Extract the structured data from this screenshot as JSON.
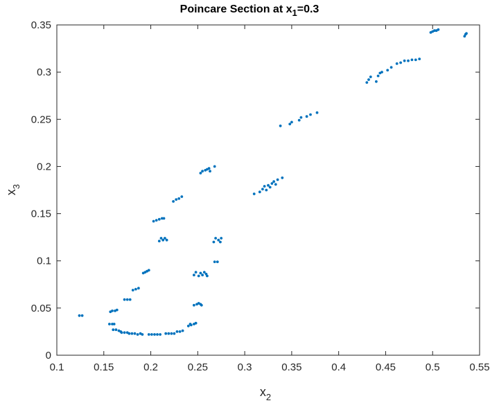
{
  "chart_data": {
    "type": "scatter",
    "title": {
      "prefix": "Poincare Section at x",
      "subscript": "1",
      "suffix": "=0.3"
    },
    "xlabel": {
      "base": "x",
      "subscript": "2"
    },
    "ylabel": {
      "base": "x",
      "subscript": "3"
    },
    "xlim": [
      0.1,
      0.55
    ],
    "ylim": [
      0,
      0.35
    ],
    "xticks": [
      0.1,
      0.15,
      0.2,
      0.25,
      0.3,
      0.35,
      0.4,
      0.45,
      0.5,
      0.55
    ],
    "yticks": [
      0,
      0.05,
      0.1,
      0.15,
      0.2,
      0.25,
      0.3,
      0.35
    ],
    "xtick_labels": [
      "0.1",
      "0.15",
      "0.2",
      "0.25",
      "0.3",
      "0.35",
      "0.4",
      "0.45",
      "0.5",
      "0.55"
    ],
    "ytick_labels": [
      "0",
      "0.05",
      "0.1",
      "0.15",
      "0.2",
      "0.25",
      "0.3",
      "0.35"
    ],
    "marker_color": "#0072BD",
    "points": [
      [
        0.124,
        0.042
      ],
      [
        0.127,
        0.042
      ],
      [
        0.156,
        0.033
      ],
      [
        0.159,
        0.033
      ],
      [
        0.161,
        0.033
      ],
      [
        0.157,
        0.046
      ],
      [
        0.159,
        0.047
      ],
      [
        0.162,
        0.047
      ],
      [
        0.164,
        0.048
      ],
      [
        0.16,
        0.027
      ],
      [
        0.163,
        0.027
      ],
      [
        0.166,
        0.026
      ],
      [
        0.168,
        0.025
      ],
      [
        0.169,
        0.024
      ],
      [
        0.172,
        0.024
      ],
      [
        0.175,
        0.024
      ],
      [
        0.177,
        0.023
      ],
      [
        0.18,
        0.023
      ],
      [
        0.183,
        0.023
      ],
      [
        0.186,
        0.022
      ],
      [
        0.189,
        0.023
      ],
      [
        0.191,
        0.022
      ],
      [
        0.198,
        0.022
      ],
      [
        0.201,
        0.022
      ],
      [
        0.204,
        0.022
      ],
      [
        0.207,
        0.022
      ],
      [
        0.21,
        0.022
      ],
      [
        0.216,
        0.023
      ],
      [
        0.219,
        0.023
      ],
      [
        0.222,
        0.023
      ],
      [
        0.225,
        0.023
      ],
      [
        0.228,
        0.025
      ],
      [
        0.231,
        0.025
      ],
      [
        0.234,
        0.026
      ],
      [
        0.24,
        0.031
      ],
      [
        0.243,
        0.032
      ],
      [
        0.246,
        0.033
      ],
      [
        0.248,
        0.034
      ],
      [
        0.242,
        0.033
      ],
      [
        0.246,
        0.053
      ],
      [
        0.249,
        0.054
      ],
      [
        0.251,
        0.055
      ],
      [
        0.253,
        0.054
      ],
      [
        0.254,
        0.053
      ],
      [
        0.246,
        0.085
      ],
      [
        0.248,
        0.088
      ],
      [
        0.251,
        0.084
      ],
      [
        0.253,
        0.087
      ],
      [
        0.255,
        0.085
      ],
      [
        0.257,
        0.088
      ],
      [
        0.259,
        0.086
      ],
      [
        0.26,
        0.084
      ],
      [
        0.268,
        0.099
      ],
      [
        0.271,
        0.099
      ],
      [
        0.267,
        0.12
      ],
      [
        0.269,
        0.124
      ],
      [
        0.272,
        0.122
      ],
      [
        0.274,
        0.12
      ],
      [
        0.275,
        0.124
      ],
      [
        0.253,
        0.193
      ],
      [
        0.255,
        0.195
      ],
      [
        0.258,
        0.196
      ],
      [
        0.26,
        0.197
      ],
      [
        0.262,
        0.198
      ],
      [
        0.263,
        0.195
      ],
      [
        0.268,
        0.2
      ],
      [
        0.172,
        0.059
      ],
      [
        0.175,
        0.059
      ],
      [
        0.178,
        0.059
      ],
      [
        0.181,
        0.069
      ],
      [
        0.184,
        0.07
      ],
      [
        0.187,
        0.071
      ],
      [
        0.192,
        0.087
      ],
      [
        0.194,
        0.088
      ],
      [
        0.196,
        0.089
      ],
      [
        0.198,
        0.09
      ],
      [
        0.209,
        0.121
      ],
      [
        0.211,
        0.124
      ],
      [
        0.213,
        0.122
      ],
      [
        0.215,
        0.124
      ],
      [
        0.217,
        0.122
      ],
      [
        0.203,
        0.142
      ],
      [
        0.206,
        0.143
      ],
      [
        0.209,
        0.144
      ],
      [
        0.212,
        0.145
      ],
      [
        0.214,
        0.145
      ],
      [
        0.224,
        0.163
      ],
      [
        0.227,
        0.165
      ],
      [
        0.23,
        0.166
      ],
      [
        0.233,
        0.168
      ],
      [
        0.31,
        0.171
      ],
      [
        0.316,
        0.173
      ],
      [
        0.319,
        0.176
      ],
      [
        0.321,
        0.179
      ],
      [
        0.323,
        0.175
      ],
      [
        0.325,
        0.18
      ],
      [
        0.327,
        0.178
      ],
      [
        0.329,
        0.182
      ],
      [
        0.331,
        0.184
      ],
      [
        0.333,
        0.181
      ],
      [
        0.335,
        0.186
      ],
      [
        0.34,
        0.188
      ],
      [
        0.338,
        0.243
      ],
      [
        0.348,
        0.245
      ],
      [
        0.35,
        0.247
      ],
      [
        0.358,
        0.249
      ],
      [
        0.36,
        0.252
      ],
      [
        0.366,
        0.253
      ],
      [
        0.37,
        0.255
      ],
      [
        0.377,
        0.257
      ],
      [
        0.43,
        0.289
      ],
      [
        0.432,
        0.292
      ],
      [
        0.434,
        0.295
      ],
      [
        0.44,
        0.29
      ],
      [
        0.442,
        0.296
      ],
      [
        0.444,
        0.299
      ],
      [
        0.446,
        0.3
      ],
      [
        0.452,
        0.302
      ],
      [
        0.456,
        0.305
      ],
      [
        0.462,
        0.309
      ],
      [
        0.466,
        0.31
      ],
      [
        0.47,
        0.312
      ],
      [
        0.474,
        0.312
      ],
      [
        0.478,
        0.313
      ],
      [
        0.482,
        0.313
      ],
      [
        0.486,
        0.314
      ],
      [
        0.498,
        0.342
      ],
      [
        0.5,
        0.343
      ],
      [
        0.502,
        0.344
      ],
      [
        0.504,
        0.344
      ],
      [
        0.506,
        0.345
      ],
      [
        0.534,
        0.338
      ],
      [
        0.535,
        0.34
      ],
      [
        0.536,
        0.341
      ]
    ]
  }
}
